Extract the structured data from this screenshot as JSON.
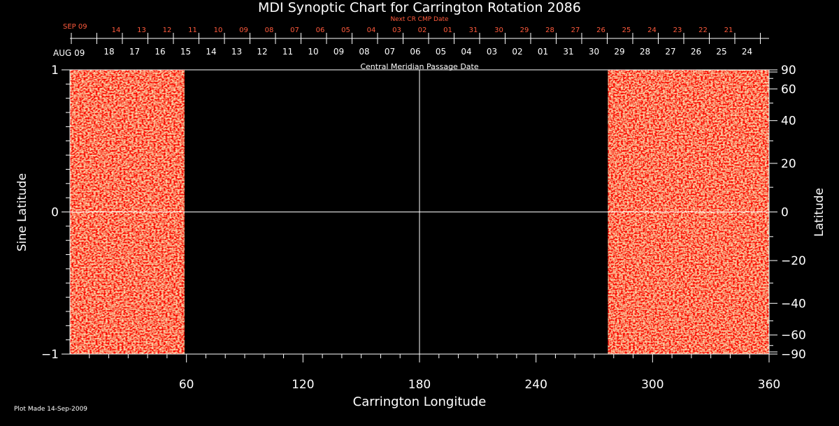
{
  "chart_data": {
    "type": "heatmap",
    "title": "MDI Synoptic Chart for Carrington Rotation 2086",
    "xlabel": "Carrington Longitude",
    "ylabel": "Sine Latitude",
    "ylabel_right": "Latitude",
    "top_axis_label": "Central Meridian Passage Date",
    "next_axis_label": "Next CR CMP Date",
    "footer": "Plot Made 14-Sep-2009",
    "xlim": [
      0,
      360
    ],
    "ylim": [
      -1,
      1
    ],
    "x_ticks": [
      60,
      120,
      180,
      240,
      300,
      360
    ],
    "y_ticks": [
      1,
      0,
      -1
    ],
    "lat_ticks": [
      90,
      60,
      40,
      20,
      0,
      -20,
      -40,
      -60,
      -90
    ],
    "date_month_label": "AUG 09",
    "date_ticks": [
      "18",
      "17",
      "16",
      "15",
      "14",
      "13",
      "12",
      "11",
      "10",
      "09",
      "08",
      "07",
      "06",
      "05",
      "04",
      "03",
      "02",
      "01",
      "31",
      "30",
      "29",
      "28",
      "27",
      "26",
      "25",
      "24"
    ],
    "next_month_label": "SEP 09",
    "next_date_ticks": [
      "14",
      "13",
      "12",
      "11",
      "10",
      "09",
      "08",
      "07",
      "06",
      "05",
      "04",
      "03",
      "02",
      "01",
      "31",
      "30",
      "29",
      "28",
      "27",
      "26",
      "25",
      "24",
      "23",
      "22",
      "21"
    ],
    "data_coverage": [
      {
        "lon_start": 0,
        "lon_end": 59
      },
      {
        "lon_start": 277,
        "lon_end": 360
      }
    ],
    "grid": "gridlines at longitude 180 and sine latitude 0",
    "colors": {
      "field": "#e84a10",
      "highlight": "#ffd060",
      "negative": "#281040",
      "axis": "#ffffff",
      "accent": "#ff5a3c"
    }
  }
}
